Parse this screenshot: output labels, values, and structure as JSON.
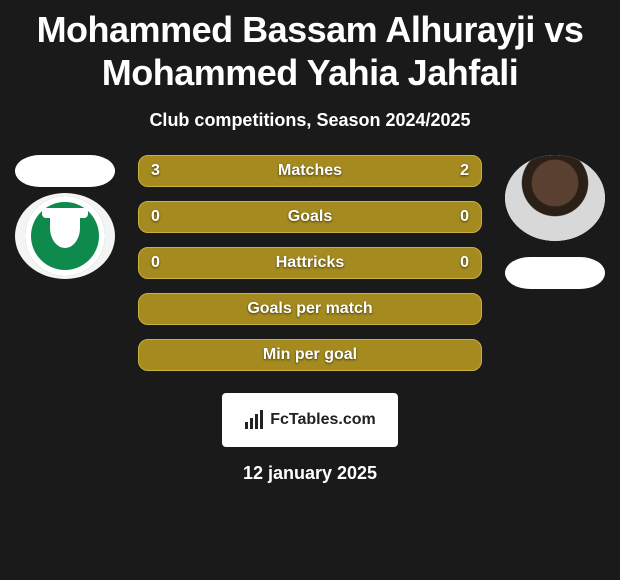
{
  "title": "Mohammed Bassam Alhurayji vs Mohammed Yahia Jahfali",
  "subtitle": "Club competitions, Season 2024/2025",
  "date": "12 january 2025",
  "colors": {
    "bar_fill": "#a48a1f",
    "bar_border": "#c9b23f",
    "flag": "#ffffff",
    "bg": "#1a1a1a"
  },
  "bars": [
    {
      "label": "Matches",
      "left": "3",
      "right": "2"
    },
    {
      "label": "Goals",
      "left": "0",
      "right": "0"
    },
    {
      "label": "Hattricks",
      "left": "0",
      "right": "0"
    },
    {
      "label": "Goals per match",
      "left": "",
      "right": ""
    },
    {
      "label": "Min per goal",
      "left": "",
      "right": ""
    }
  ],
  "brand": "FcTables.com"
}
